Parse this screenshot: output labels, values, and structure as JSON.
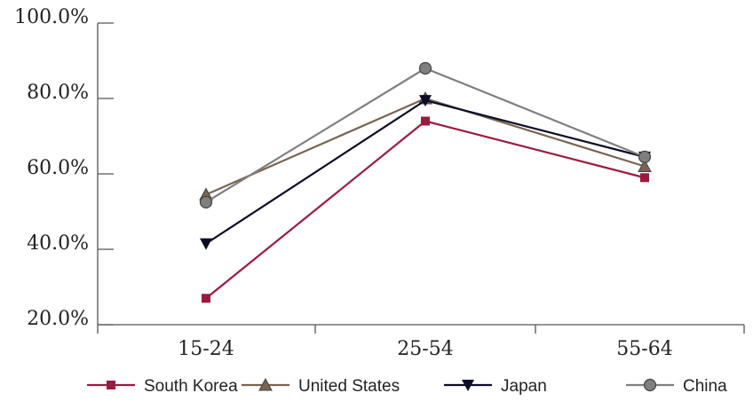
{
  "chart_data": {
    "type": "line",
    "categories": [
      "15-24",
      "25-54",
      "55-64"
    ],
    "ylim": [
      20,
      100
    ],
    "yticks": [
      20,
      40,
      60,
      80,
      100
    ],
    "ytick_labels": [
      "20.0%",
      "40.0%",
      "60.0%",
      "80.0%",
      "100.0%"
    ],
    "grid": false,
    "legend_position": "bottom",
    "series": [
      {
        "name": "South Korea",
        "values": [
          27.0,
          74.0,
          59.0
        ],
        "color": "#9b1b3f",
        "marker": "square"
      },
      {
        "name": "United States",
        "values": [
          54.5,
          80.0,
          62.0
        ],
        "color": "#7a6451",
        "marker": "triangle-up"
      },
      {
        "name": "Japan",
        "values": [
          41.5,
          79.5,
          64.5
        ],
        "color": "#0c0c26",
        "marker": "triangle-down"
      },
      {
        "name": "China",
        "values": [
          52.5,
          88.0,
          64.5
        ],
        "color": "#7f7f7f",
        "marker": "circle"
      }
    ]
  }
}
